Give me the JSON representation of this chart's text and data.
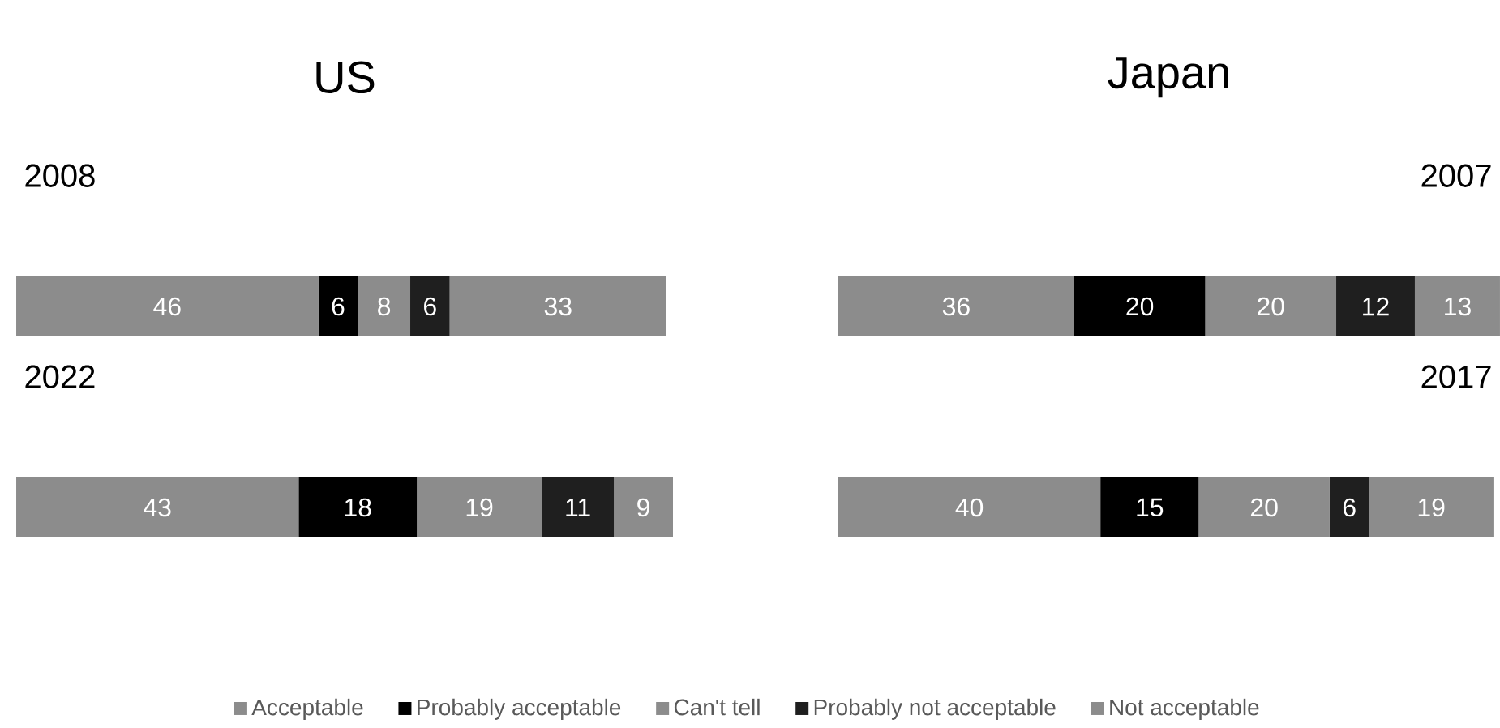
{
  "chart_data": [
    {
      "type": "bar",
      "orientation": "horizontal",
      "stacked": true,
      "title": "US",
      "categories": [
        "2008",
        "2022"
      ],
      "data_labels": true,
      "legend": "bottom",
      "series": [
        {
          "name": "Acceptable",
          "color": "#8c8c8c",
          "values": [
            46,
            43
          ]
        },
        {
          "name": "Probably acceptable",
          "color": "#000000",
          "values": [
            6,
            18
          ]
        },
        {
          "name": "Can't tell",
          "color": "#8c8c8c",
          "values": [
            8,
            19
          ]
        },
        {
          "name": "Probably not acceptable",
          "color": "#1f1f1f",
          "values": [
            6,
            11
          ]
        },
        {
          "name": "Not acceptable",
          "color": "#8c8c8c",
          "values": [
            33,
            9
          ]
        }
      ]
    },
    {
      "type": "bar",
      "orientation": "horizontal",
      "stacked": true,
      "title": "Japan",
      "categories": [
        "2007",
        "2017"
      ],
      "data_labels": true,
      "series": [
        {
          "color": "#8c8c8c",
          "values": [
            36,
            40
          ]
        },
        {
          "color": "#000000",
          "values": [
            20,
            15
          ]
        },
        {
          "color": "#8c8c8c",
          "values": [
            20,
            20
          ]
        },
        {
          "color": "#1f1f1f",
          "values": [
            12,
            6
          ]
        },
        {
          "color": "#8c8c8c",
          "values": [
            13,
            19
          ]
        }
      ]
    }
  ]
}
